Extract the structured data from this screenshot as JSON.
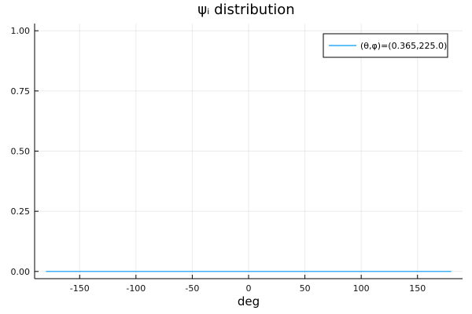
{
  "chart_data": {
    "type": "line",
    "title": "ψᵢ distribution",
    "xlabel": "deg",
    "ylabel": "",
    "xlim": [
      -190,
      190
    ],
    "ylim": [
      -0.03,
      1.03
    ],
    "x_ticks": [
      -150,
      -100,
      -50,
      0,
      50,
      100,
      150
    ],
    "y_ticks": [
      0.0,
      0.25,
      0.5,
      0.75,
      1.0
    ],
    "x_tick_labels": [
      "-150",
      "-100",
      "-50",
      "0",
      "50",
      "100",
      "150"
    ],
    "y_tick_labels": [
      "0.00",
      "0.25",
      "0.50",
      "0.75",
      "1.00"
    ],
    "grid": true,
    "legend_position": "top-right",
    "series": [
      {
        "name": "(θ,φ)=(0.365,225.0)",
        "color": "#009AFA",
        "x": [
          -180,
          180
        ],
        "y": [
          0,
          0
        ]
      }
    ]
  }
}
